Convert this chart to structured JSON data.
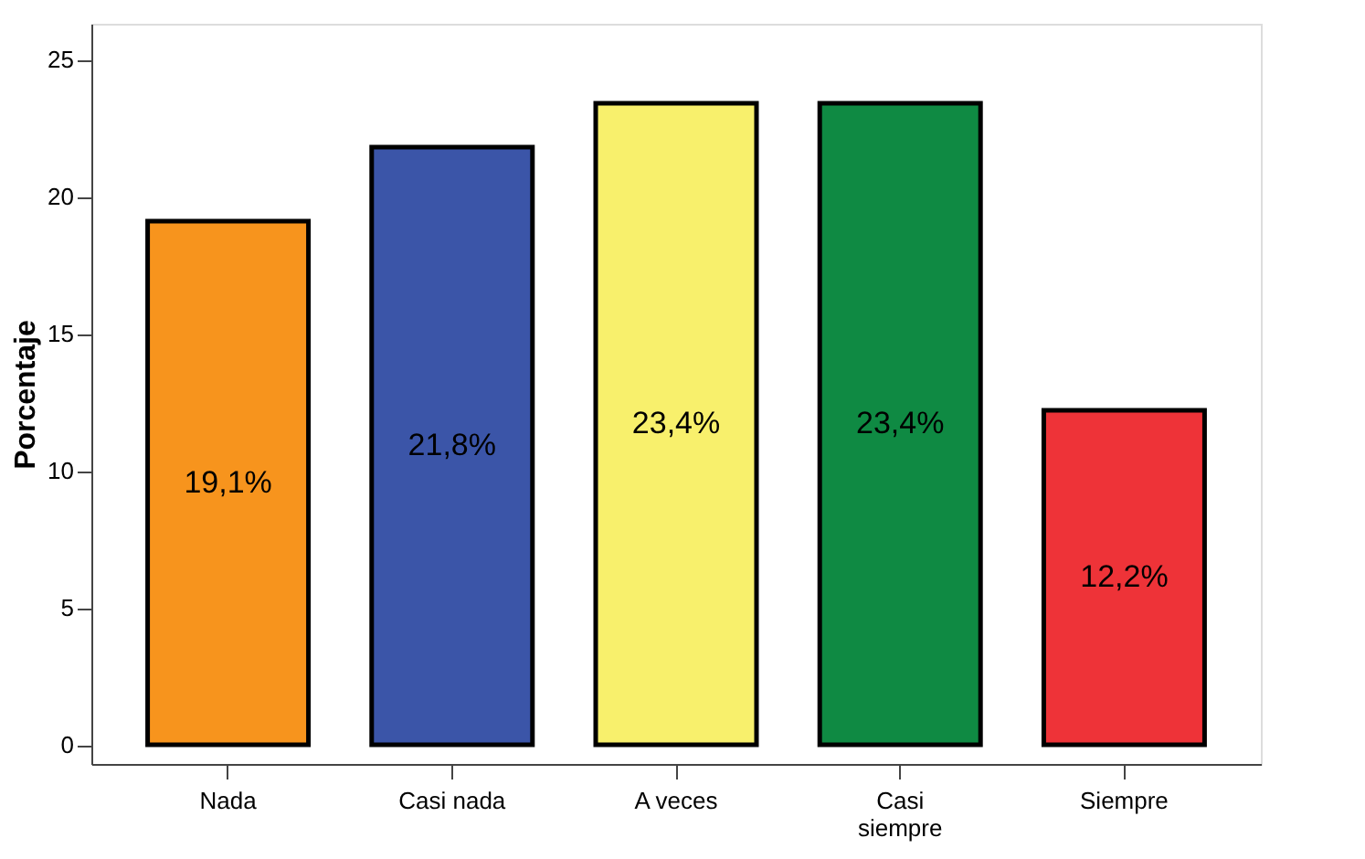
{
  "chart_data": {
    "type": "bar",
    "ylabel": "Porcentaje",
    "categories": [
      "Nada",
      "Casi nada",
      "A veces",
      "Casi siempre",
      "Siempre"
    ],
    "values": [
      19.1,
      21.8,
      23.4,
      23.4,
      12.2
    ],
    "colors": [
      "#f7941d",
      "#3b55a8",
      "#f8f06c",
      "#0f8a43",
      "#ee3338"
    ],
    "value_labels": [
      "19,1%",
      "21,8%",
      "23,4%",
      "23,4%",
      "12,2%"
    ],
    "ylim": [
      -0.7,
      26.3
    ],
    "yticks": [
      0,
      5,
      10,
      15,
      20,
      25
    ],
    "grid": false
  }
}
